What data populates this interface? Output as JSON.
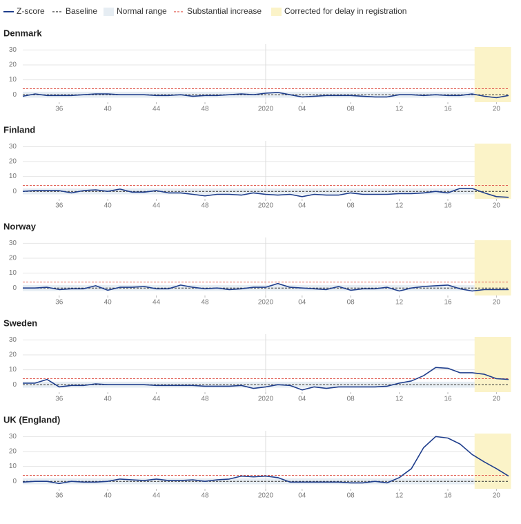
{
  "legend": [
    {
      "label": "Z-score",
      "color": "#1f3e8c",
      "style": "line"
    },
    {
      "label": "Baseline",
      "color": "#333333",
      "style": "dash"
    },
    {
      "label": "Normal range",
      "color": "#e6edf3",
      "style": "box"
    },
    {
      "label": "Substantial increase",
      "color": "#e05a4f",
      "style": "dash"
    },
    {
      "label": "Corrected for delay in registration",
      "color": "#fbf3c8",
      "style": "box"
    }
  ],
  "chart_data": [
    {
      "type": "line",
      "title": "Denmark",
      "categories": [
        null,
        null,
        null,
        "36",
        null,
        null,
        null,
        "40",
        null,
        null,
        null,
        "44",
        null,
        null,
        null,
        "48",
        null,
        null,
        null,
        null,
        "2020",
        null,
        null,
        "04",
        null,
        null,
        null,
        "08",
        null,
        null,
        null,
        "12",
        null,
        null,
        null,
        "16",
        null,
        null,
        null,
        "20",
        null
      ],
      "series": [
        {
          "color": "#1f3e8c",
          "values": [
            -1,
            0.5,
            -0.5,
            -0.5,
            -0.5,
            0,
            0.5,
            0.5,
            0,
            0,
            0,
            -0.5,
            -0.5,
            0,
            -1,
            -0.5,
            -0.5,
            0,
            0.5,
            0,
            1,
            1.5,
            0,
            -1.5,
            -1,
            -0.5,
            -0.5,
            -0.5,
            -1,
            -1.5,
            -1.5,
            0,
            0,
            -0.5,
            0,
            -0.5,
            -0.5,
            0.5,
            -1,
            -2,
            -0.5
          ]
        }
      ],
      "ylim": [
        -5,
        32
      ],
      "yticks": [
        0,
        10,
        20,
        30
      ],
      "grid": true,
      "baseline": 0,
      "substantial_increase": 4,
      "normal_range": [
        -2,
        2
      ],
      "vline_at": "2020",
      "corrected_region": [
        37,
        40
      ]
    },
    {
      "type": "line",
      "title": "Finland",
      "categories": [
        null,
        null,
        null,
        "36",
        null,
        null,
        null,
        "40",
        null,
        null,
        null,
        "44",
        null,
        null,
        null,
        "48",
        null,
        null,
        null,
        null,
        "2020",
        null,
        null,
        "04",
        null,
        null,
        null,
        "08",
        null,
        null,
        null,
        "12",
        null,
        null,
        null,
        "16",
        null,
        null,
        null,
        "20",
        null
      ],
      "series": [
        {
          "color": "#1f3e8c",
          "values": [
            0,
            0.5,
            0.5,
            0.5,
            -1,
            0.5,
            1,
            0,
            1.5,
            -0.5,
            -0.5,
            0.5,
            -1,
            -1,
            -2,
            -3,
            -2,
            -2,
            -2.5,
            -1,
            -2,
            -2.5,
            -2,
            -3.5,
            -2,
            -2.5,
            -2.5,
            -1,
            -2,
            -2,
            -2,
            -1.5,
            -1.5,
            -1,
            0,
            -1,
            2,
            2,
            -1,
            -3.5,
            -4
          ]
        }
      ],
      "ylim": [
        -5,
        32
      ],
      "yticks": [
        0,
        10,
        20,
        30
      ],
      "grid": true,
      "baseline": 0,
      "substantial_increase": 4,
      "normal_range": [
        -2,
        2
      ],
      "vline_at": "2020",
      "corrected_region": [
        37,
        40
      ]
    },
    {
      "type": "line",
      "title": "Norway",
      "categories": [
        null,
        null,
        null,
        "36",
        null,
        null,
        null,
        "40",
        null,
        null,
        null,
        "44",
        null,
        null,
        null,
        "48",
        null,
        null,
        null,
        null,
        "2020",
        null,
        null,
        "04",
        null,
        null,
        null,
        "08",
        null,
        null,
        null,
        "12",
        null,
        null,
        null,
        "16",
        null,
        null,
        null,
        "20",
        null
      ],
      "series": [
        {
          "color": "#1f3e8c",
          "values": [
            0,
            0,
            0.5,
            -1,
            -0.5,
            -0.5,
            1.5,
            -1.5,
            0.5,
            0.5,
            1,
            -0.5,
            -0.5,
            2,
            0.5,
            -0.5,
            0,
            -1,
            -0.5,
            0.5,
            0.5,
            3,
            0.5,
            0,
            -0.5,
            -1,
            1,
            -1.5,
            -0.5,
            -0.5,
            0.5,
            -2,
            0,
            1,
            1.5,
            2,
            -0.5,
            -2,
            -1,
            -1,
            -1
          ]
        }
      ],
      "ylim": [
        -5,
        32
      ],
      "yticks": [
        0,
        10,
        20,
        30
      ],
      "grid": true,
      "baseline": 0,
      "substantial_increase": 4,
      "normal_range": [
        -2,
        2
      ],
      "vline_at": "2020",
      "corrected_region": [
        37,
        40
      ]
    },
    {
      "type": "line",
      "title": "Sweden",
      "categories": [
        null,
        null,
        null,
        "36",
        null,
        null,
        null,
        "40",
        null,
        null,
        null,
        "44",
        null,
        null,
        null,
        "48",
        null,
        null,
        null,
        null,
        "2020",
        null,
        null,
        "04",
        null,
        null,
        null,
        "08",
        null,
        null,
        null,
        "12",
        null,
        null,
        null,
        "16",
        null,
        null,
        null,
        "20",
        null
      ],
      "series": [
        {
          "color": "#1f3e8c",
          "values": [
            1,
            1,
            3.5,
            -1.5,
            -0.5,
            -0.5,
            0.5,
            0,
            0,
            0,
            0,
            -0.5,
            -0.5,
            -0.5,
            -0.5,
            -1,
            -1,
            -1,
            -0.5,
            -2.5,
            -1.5,
            0,
            -0.5,
            -3.5,
            -1.5,
            -2.5,
            -1.5,
            -1.5,
            -1.5,
            -1.5,
            -1,
            1,
            2.5,
            6,
            11.5,
            11,
            8,
            8,
            7,
            4,
            3.5
          ]
        }
      ],
      "ylim": [
        -5,
        32
      ],
      "yticks": [
        0,
        10,
        20,
        30
      ],
      "grid": true,
      "baseline": 0,
      "substantial_increase": 4,
      "normal_range": [
        -2,
        2
      ],
      "vline_at": "2020",
      "corrected_region": [
        37,
        40
      ]
    },
    {
      "type": "line",
      "title": "UK (England)",
      "categories": [
        null,
        null,
        null,
        "36",
        null,
        null,
        null,
        "40",
        null,
        null,
        null,
        "44",
        null,
        null,
        null,
        "48",
        null,
        null,
        null,
        null,
        "2020",
        null,
        null,
        "04",
        null,
        null,
        null,
        "08",
        null,
        null,
        null,
        "12",
        null,
        null,
        null,
        "16",
        null,
        null,
        null,
        "20",
        null
      ],
      "series": [
        {
          "color": "#1f3e8c",
          "values": [
            -0.5,
            0,
            0,
            -1.5,
            0,
            -0.5,
            -0.5,
            0,
            1.5,
            1,
            0.5,
            1.5,
            0.5,
            0.5,
            1,
            0,
            1,
            1.5,
            3.5,
            3,
            3.5,
            2.5,
            -0.5,
            -0.5,
            -0.5,
            -0.5,
            -0.5,
            -1,
            -1,
            0,
            -1,
            2.5,
            8.5,
            22.5,
            30,
            29,
            25,
            18,
            13,
            8.5,
            3.5
          ]
        }
      ],
      "ylim": [
        -5,
        32
      ],
      "yticks": [
        0,
        10,
        20,
        30
      ],
      "grid": true,
      "baseline": 0,
      "substantial_increase": 4,
      "normal_range": [
        -2,
        2
      ],
      "vline_at": "2020",
      "corrected_region": [
        37,
        40
      ]
    }
  ]
}
